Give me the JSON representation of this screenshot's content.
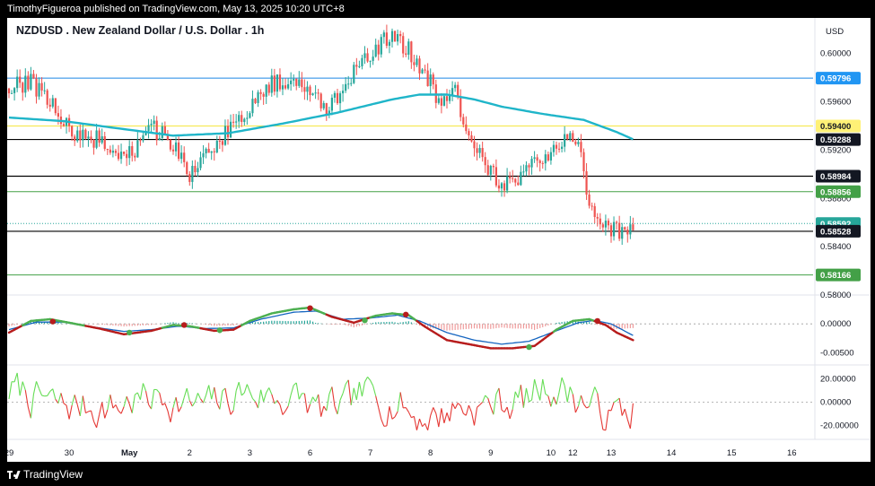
{
  "header": {
    "publisher_line": "TimothyFigueroa published on TradingView.com, May 13, 2025 10:20 UTC+8"
  },
  "footer": {
    "brand": "TradingView"
  },
  "colors": {
    "up": "#26a69a",
    "down": "#ef5350",
    "ma": "#1fb5c9",
    "blue_line": "#1e88e5",
    "yellow_line": "#f5e642",
    "green_line": "#43a047",
    "black_line": "#000000",
    "osc_green": "#4caf50",
    "osc_red": "#b71c1c",
    "osc_blue": "#1565c0",
    "rsi_green": "#66dd55",
    "rsi_red": "#e53935"
  },
  "chart_data": [
    {
      "type": "candlestick",
      "title": "NZDUSD . New Zealand Dollar / U.S. Dollar . 1h",
      "currency": "USD",
      "y_ticks": [
        0.6,
        0.596,
        0.592,
        0.588,
        0.584,
        0.58
      ],
      "y_tick_labels": [
        "0.60000",
        "0.59600",
        "0.59200",
        "0.58800",
        "0.58400",
        "0.58000"
      ],
      "ylim": [
        0.5803,
        0.6025
      ],
      "x_ticks": [
        {
          "label": "29",
          "index": 0
        },
        {
          "label": "30",
          "index": 22
        },
        {
          "label": "May",
          "index": 44
        },
        {
          "label": "2",
          "index": 66
        },
        {
          "label": "3",
          "index": 88
        },
        {
          "label": "6",
          "index": 110
        },
        {
          "label": "7",
          "index": 132
        },
        {
          "label": "8",
          "index": 154
        },
        {
          "label": "9",
          "index": 176
        },
        {
          "label": "10",
          "index": 198
        },
        {
          "label": "12",
          "index": 206
        },
        {
          "label": "13",
          "index": 220
        },
        {
          "label": "14",
          "index": 242
        },
        {
          "label": "15",
          "index": 264
        },
        {
          "label": "16",
          "index": 286
        }
      ],
      "price_lines": [
        {
          "value": 0.59796,
          "label": "0.59796",
          "style": "blue"
        },
        {
          "value": 0.594,
          "label": "0.59400",
          "style": "yellow"
        },
        {
          "value": 0.59288,
          "label": "0.59288",
          "style": "black"
        },
        {
          "value": 0.58984,
          "label": "0.58984",
          "style": "black"
        },
        {
          "value": 0.58856,
          "label": "0.58856",
          "style": "green"
        },
        {
          "value": 0.58592,
          "label": "0.58592",
          "style": "last"
        },
        {
          "value": 0.58528,
          "label": "0.58528",
          "style": "black"
        },
        {
          "value": 0.58166,
          "label": "0.58166",
          "style": "green"
        }
      ],
      "moving_average": [
        [
          0,
          0.5947
        ],
        [
          20,
          0.5944
        ],
        [
          40,
          0.5938
        ],
        [
          60,
          0.5932
        ],
        [
          80,
          0.5934
        ],
        [
          100,
          0.5942
        ],
        [
          120,
          0.5951
        ],
        [
          140,
          0.5962
        ],
        [
          150,
          0.5966
        ],
        [
          160,
          0.5966
        ],
        [
          170,
          0.5962
        ],
        [
          180,
          0.5956
        ],
        [
          195,
          0.595
        ],
        [
          210,
          0.5945
        ],
        [
          222,
          0.5935
        ],
        [
          228,
          0.5929
        ]
      ],
      "price_anchors": [
        [
          0,
          0.5971
        ],
        [
          8,
          0.5976
        ],
        [
          15,
          0.5962
        ],
        [
          22,
          0.5935
        ],
        [
          33,
          0.5928
        ],
        [
          42,
          0.591
        ],
        [
          52,
          0.5938
        ],
        [
          58,
          0.593
        ],
        [
          66,
          0.59
        ],
        [
          72,
          0.5915
        ],
        [
          80,
          0.5935
        ],
        [
          88,
          0.5955
        ],
        [
          96,
          0.5975
        ],
        [
          104,
          0.598
        ],
        [
          110,
          0.5968
        ],
        [
          117,
          0.5955
        ],
        [
          126,
          0.5983
        ],
        [
          134,
          0.6005
        ],
        [
          140,
          0.6014
        ],
        [
          146,
          0.6002
        ],
        [
          152,
          0.5985
        ],
        [
          158,
          0.5955
        ],
        [
          163,
          0.597
        ],
        [
          167,
          0.5935
        ],
        [
          172,
          0.592
        ],
        [
          178,
          0.5895
        ],
        [
          184,
          0.589
        ],
        [
          192,
          0.591
        ],
        [
          200,
          0.5922
        ],
        [
          206,
          0.5932
        ],
        [
          209,
          0.5915
        ],
        [
          211,
          0.588
        ],
        [
          214,
          0.587
        ],
        [
          218,
          0.5855
        ],
        [
          222,
          0.5853
        ],
        [
          228,
          0.5859
        ]
      ],
      "candle_count": 229
    },
    {
      "type": "line",
      "name": "oscillator",
      "y_tick_labels": [
        "0.00000",
        "-0.00500"
      ],
      "y_ticks": [
        0,
        -0.005
      ],
      "ylim": [
        -0.0063,
        0.0045
      ],
      "fast": [
        [
          0,
          -0.0015
        ],
        [
          8,
          0.0005
        ],
        [
          15,
          0.0008
        ],
        [
          22,
          0.0002
        ],
        [
          33,
          -0.0008
        ],
        [
          42,
          -0.0018
        ],
        [
          52,
          -0.0012
        ],
        [
          60,
          -0.0002
        ],
        [
          66,
          -0.0004
        ],
        [
          75,
          -0.0012
        ],
        [
          82,
          -0.001
        ],
        [
          88,
          0.0005
        ],
        [
          96,
          0.0018
        ],
        [
          104,
          0.0025
        ],
        [
          110,
          0.0028
        ],
        [
          118,
          0.0012
        ],
        [
          126,
          0.0002
        ],
        [
          134,
          0.0014
        ],
        [
          140,
          0.0018
        ],
        [
          146,
          0.0015
        ],
        [
          152,
          -0.0005
        ],
        [
          160,
          -0.0028
        ],
        [
          168,
          -0.0035
        ],
        [
          176,
          -0.0042
        ],
        [
          184,
          -0.0042
        ],
        [
          192,
          -0.0038
        ],
        [
          200,
          -0.001
        ],
        [
          206,
          0.0005
        ],
        [
          212,
          0.0008
        ],
        [
          218,
          -0.0002
        ],
        [
          222,
          -0.0015
        ],
        [
          228,
          -0.0028
        ]
      ],
      "slow": [
        [
          0,
          -0.001
        ],
        [
          10,
          0.0003
        ],
        [
          20,
          0.0003
        ],
        [
          30,
          -0.0005
        ],
        [
          42,
          -0.0013
        ],
        [
          52,
          -0.001
        ],
        [
          62,
          -0.0004
        ],
        [
          72,
          -0.0008
        ],
        [
          82,
          -0.0007
        ],
        [
          92,
          0.0008
        ],
        [
          104,
          0.002
        ],
        [
          112,
          0.0022
        ],
        [
          122,
          0.0008
        ],
        [
          132,
          0.001
        ],
        [
          142,
          0.0015
        ],
        [
          150,
          0.0005
        ],
        [
          160,
          -0.0015
        ],
        [
          170,
          -0.0028
        ],
        [
          180,
          -0.0035
        ],
        [
          190,
          -0.003
        ],
        [
          200,
          -0.0012
        ],
        [
          208,
          0.0002
        ],
        [
          214,
          0.0006
        ],
        [
          220,
          0.0
        ],
        [
          228,
          -0.002
        ]
      ],
      "cross_dots": [
        {
          "index": 16,
          "value": 0.0004,
          "color": "red"
        },
        {
          "index": 44,
          "value": -0.0015,
          "color": "green"
        },
        {
          "index": 64,
          "value": -0.0002,
          "color": "red"
        },
        {
          "index": 77,
          "value": -0.0011,
          "color": "green"
        },
        {
          "index": 110,
          "value": 0.0027,
          "color": "red"
        },
        {
          "index": 130,
          "value": 0.0006,
          "color": "green"
        },
        {
          "index": 145,
          "value": 0.0016,
          "color": "red"
        },
        {
          "index": 190,
          "value": -0.004,
          "color": "green"
        },
        {
          "index": 215,
          "value": 0.0005,
          "color": "red"
        }
      ]
    },
    {
      "type": "line",
      "name": "momentum",
      "y_tick_labels": [
        "20.00000",
        "0.00000",
        "-20.00000"
      ],
      "y_ticks": [
        20,
        0,
        -20
      ],
      "ylim": [
        -28,
        28
      ]
    }
  ]
}
